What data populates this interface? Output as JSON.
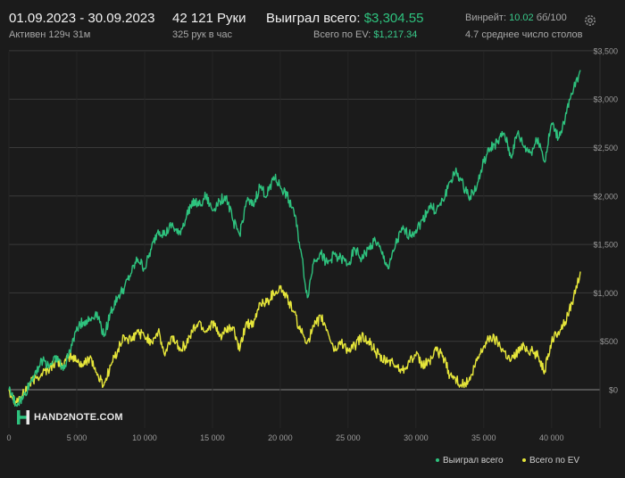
{
  "header": {
    "date_range": "01.09.2023 - 30.09.2023",
    "active_time": "Активен 129ч 31м",
    "hands": "42 121 Руки",
    "hands_per_hour": "325 рук в час",
    "won_label": "Выиграл всего:",
    "won_value": "$3,304.55",
    "ev_label": "Всего по EV:",
    "ev_value": "$1,217.34",
    "winrate_label": "Винрейт:",
    "winrate_value": "10.02",
    "winrate_unit": "бб/100",
    "avg_tables": "4.7 среднее число столов"
  },
  "logo": {
    "text": "HAND2NOTE.COM"
  },
  "icons": {
    "settings": "gear-icon"
  },
  "legend": {
    "won": "Выиграл всего",
    "ev": "Всего по EV"
  },
  "colors": {
    "background": "#1b1b1b",
    "won_line": "#2ec27e",
    "ev_line": "#e6e63a",
    "grid": "#3a3a3a",
    "zero_line": "#8a8a8a"
  },
  "chart_data": {
    "type": "line",
    "x_ticks": [
      0,
      5000,
      10000,
      15000,
      20000,
      25000,
      30000,
      35000,
      40000
    ],
    "x_tick_labels": [
      "0",
      "5 000",
      "10 000",
      "15 000",
      "20 000",
      "25 000",
      "30 000",
      "35 000",
      "40 000"
    ],
    "y_ticks": [
      0,
      500,
      1000,
      1500,
      2000,
      2500,
      3000,
      3500
    ],
    "y_tick_labels": [
      "$0",
      "$500",
      "$1,000",
      "$1,500",
      "$2,000",
      "$2,500",
      "$3,000",
      "$3,500"
    ],
    "xlim": [
      0,
      42121
    ],
    "ylim": [
      -300,
      3500
    ],
    "grid": true,
    "legend_position": "bottom-right",
    "series": [
      {
        "name": "Выиграл всего",
        "color": "#2ec27e",
        "x": [
          0,
          500,
          1000,
          1500,
          2000,
          2500,
          3000,
          3500,
          4000,
          4500,
          5000,
          5500,
          6000,
          6500,
          7000,
          7500,
          8000,
          8500,
          9000,
          9500,
          10000,
          10500,
          11000,
          11500,
          12000,
          12500,
          13000,
          13500,
          14000,
          14500,
          15000,
          15500,
          16000,
          16500,
          17000,
          17500,
          18000,
          18500,
          19000,
          19500,
          20000,
          20500,
          21000,
          21500,
          22000,
          22500,
          23000,
          23500,
          24000,
          24500,
          25000,
          25500,
          26000,
          26500,
          27000,
          27500,
          28000,
          28500,
          29000,
          29500,
          30000,
          30500,
          31000,
          31500,
          32000,
          32500,
          33000,
          33500,
          34000,
          34500,
          35000,
          35500,
          36000,
          36500,
          37000,
          37500,
          38000,
          38500,
          39000,
          39500,
          40000,
          40500,
          41000,
          41500,
          42121
        ],
        "y": [
          0,
          -150,
          -100,
          50,
          200,
          300,
          250,
          350,
          200,
          400,
          650,
          700,
          720,
          800,
          550,
          800,
          950,
          1050,
          1200,
          1350,
          1250,
          1450,
          1650,
          1600,
          1700,
          1600,
          1750,
          1950,
          1900,
          2000,
          1850,
          1950,
          2000,
          1750,
          1600,
          1950,
          1900,
          2100,
          2000,
          2200,
          2100,
          2000,
          1850,
          1450,
          950,
          1350,
          1400,
          1300,
          1400,
          1350,
          1300,
          1450,
          1350,
          1450,
          1550,
          1400,
          1250,
          1500,
          1650,
          1600,
          1650,
          1750,
          1900,
          1850,
          1950,
          2150,
          2250,
          2100,
          2000,
          2100,
          2350,
          2500,
          2550,
          2650,
          2400,
          2650,
          2500,
          2450,
          2600,
          2350,
          2750,
          2600,
          2800,
          3050,
          3300
        ]
      },
      {
        "name": "Всего по EV",
        "color": "#e6e63a",
        "x": [
          0,
          500,
          1000,
          1500,
          2000,
          2500,
          3000,
          3500,
          4000,
          4500,
          5000,
          5500,
          6000,
          6500,
          7000,
          7500,
          8000,
          8500,
          9000,
          9500,
          10000,
          10500,
          11000,
          11500,
          12000,
          12500,
          13000,
          13500,
          14000,
          14500,
          15000,
          15500,
          16000,
          16500,
          17000,
          17500,
          18000,
          18500,
          19000,
          19500,
          20000,
          20500,
          21000,
          21500,
          22000,
          22500,
          23000,
          23500,
          24000,
          24500,
          25000,
          25500,
          26000,
          26500,
          27000,
          27500,
          28000,
          28500,
          29000,
          29500,
          30000,
          30500,
          31000,
          31500,
          32000,
          32500,
          33000,
          33500,
          34000,
          34500,
          35000,
          35500,
          36000,
          36500,
          37000,
          37500,
          38000,
          38500,
          39000,
          39500,
          40000,
          40500,
          41000,
          41500,
          42121
        ],
        "y": [
          0,
          -120,
          -60,
          60,
          120,
          180,
          220,
          300,
          250,
          350,
          300,
          250,
          350,
          150,
          50,
          250,
          400,
          550,
          500,
          600,
          550,
          500,
          600,
          350,
          550,
          450,
          450,
          600,
          700,
          600,
          700,
          550,
          600,
          650,
          400,
          700,
          650,
          900,
          900,
          1000,
          1050,
          950,
          800,
          600,
          500,
          650,
          750,
          600,
          400,
          500,
          400,
          450,
          550,
          500,
          400,
          300,
          300,
          250,
          200,
          300,
          350,
          250,
          300,
          400,
          350,
          150,
          100,
          50,
          100,
          300,
          450,
          550,
          500,
          400,
          300,
          400,
          450,
          400,
          350,
          200,
          500,
          600,
          700,
          900,
          1220
        ]
      }
    ]
  }
}
